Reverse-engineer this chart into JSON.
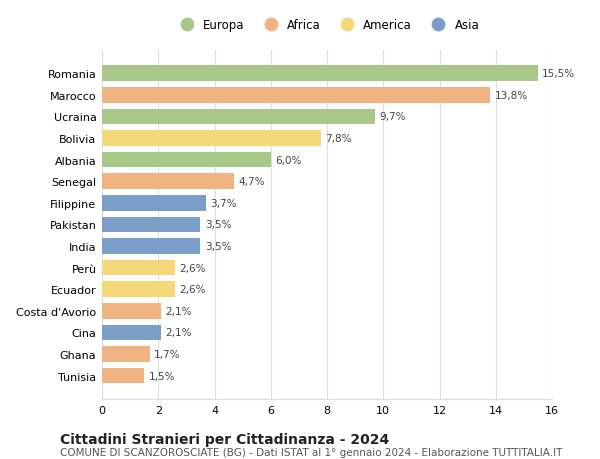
{
  "categories": [
    "Romania",
    "Marocco",
    "Ucraina",
    "Bolivia",
    "Albania",
    "Senegal",
    "Filippine",
    "Pakistan",
    "India",
    "Perù",
    "Ecuador",
    "Costa d'Avorio",
    "Cina",
    "Ghana",
    "Tunisia"
  ],
  "values": [
    15.5,
    13.8,
    9.7,
    7.8,
    6.0,
    4.7,
    3.7,
    3.5,
    3.5,
    2.6,
    2.6,
    2.1,
    2.1,
    1.7,
    1.5
  ],
  "labels": [
    "15,5%",
    "13,8%",
    "9,7%",
    "7,8%",
    "6,0%",
    "4,7%",
    "3,7%",
    "3,5%",
    "3,5%",
    "2,6%",
    "2,6%",
    "2,1%",
    "2,1%",
    "1,7%",
    "1,5%"
  ],
  "continents": [
    "Europa",
    "Africa",
    "Europa",
    "America",
    "Europa",
    "Africa",
    "Asia",
    "Asia",
    "Asia",
    "America",
    "America",
    "Africa",
    "Asia",
    "Africa",
    "Africa"
  ],
  "colors": {
    "Europa": "#a8c88a",
    "Africa": "#f0b482",
    "America": "#f5d87a",
    "Asia": "#7b9ec8"
  },
  "legend_order": [
    "Europa",
    "Africa",
    "America",
    "Asia"
  ],
  "xlim": [
    0,
    16
  ],
  "xticks": [
    0,
    2,
    4,
    6,
    8,
    10,
    12,
    14,
    16
  ],
  "title": "Cittadini Stranieri per Cittadinanza - 2024",
  "subtitle": "COMUNE DI SCANZOROSCIATE (BG) - Dati ISTAT al 1° gennaio 2024 - Elaborazione TUTTITALIA.IT",
  "title_fontsize": 10,
  "subtitle_fontsize": 7.5,
  "background_color": "#ffffff",
  "grid_color": "#dddddd",
  "bar_height": 0.72
}
